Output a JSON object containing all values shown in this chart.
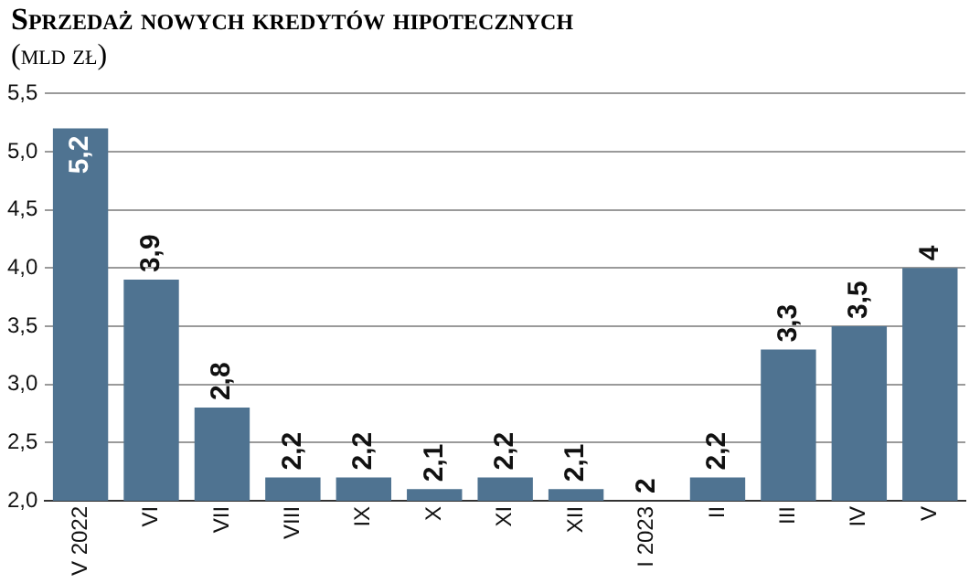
{
  "chart_data": {
    "type": "bar",
    "title": "Sprzedaż nowych kredytów hipotecznych",
    "subtitle": "(mld zł)",
    "categories": [
      "V 2022",
      "VI",
      "VII",
      "VIII",
      "IX",
      "X",
      "XI",
      "XII",
      "I 2023",
      "II",
      "III",
      "IV",
      "V"
    ],
    "values": [
      5.2,
      3.9,
      2.8,
      2.2,
      2.2,
      2.1,
      2.2,
      2.1,
      2,
      2.2,
      3.3,
      3.5,
      4
    ],
    "value_labels": [
      "5,2",
      "3,9",
      "2,8",
      "2,2",
      "2,2",
      "2,1",
      "2,2",
      "2,1",
      "2",
      "2,2",
      "3,3",
      "3,5",
      "4"
    ],
    "color": "#4f7391",
    "ylim": [
      2,
      5.5
    ],
    "yticks": [
      {
        "value": 2,
        "label": "2,0"
      },
      {
        "value": 2.5,
        "label": "2,5"
      },
      {
        "value": 3,
        "label": "3,0"
      },
      {
        "value": 3.5,
        "label": "3,5"
      },
      {
        "value": 4,
        "label": "4,0"
      },
      {
        "value": 4.5,
        "label": "4,5"
      },
      {
        "value": 5,
        "label": "5,0"
      },
      {
        "value": 5.5,
        "label": "5,5"
      }
    ],
    "grid": "y"
  }
}
